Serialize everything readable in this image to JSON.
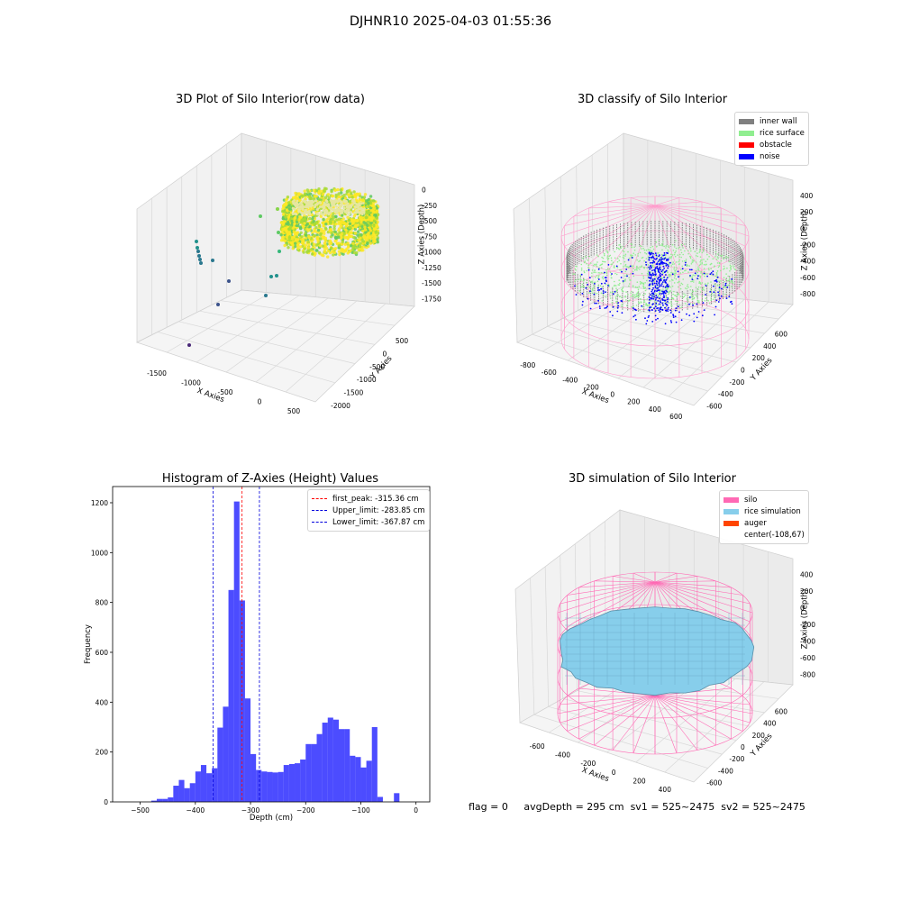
{
  "figure": {
    "suptitle": "DJHNR10 2025-04-03 01:55:36",
    "status": {
      "flag": "flag = 0",
      "avg_depth": "avgDepth = 295 cm",
      "sv1": "sv1 = 525~2475",
      "sv2": "sv2 = 525~2475"
    }
  },
  "chart_data": [
    {
      "type": "scatter",
      "title": "3D Plot of Silo Interior(row data)",
      "xlabel": "X Axies",
      "ylabel": "Y Axies",
      "zlabel": "Z Axies (Depth)",
      "x_ticks": [
        "-1500",
        "-1000",
        "-500",
        "0",
        "500"
      ],
      "y_ticks": [
        "500",
        "0",
        "-500",
        "-1000",
        "-1500",
        "-2000"
      ],
      "z_ticks": [
        "0",
        "-250",
        "-500",
        "-750",
        "-1000",
        "-1250",
        "-1500",
        "-1750"
      ],
      "colormap": [
        "#440154",
        "#3b528b",
        "#21918c",
        "#5ec962",
        "#fde725"
      ],
      "description_points": "dense ring of points near depth -250 to -750, sparse outliers down to about -1750"
    },
    {
      "type": "scatter",
      "title": "3D classify of Silo Interior",
      "xlabel": "X Axies",
      "ylabel": "Y Axies",
      "zlabel": "Z Axies (Depth)",
      "x_ticks": [
        "-800",
        "-600",
        "-400",
        "-200",
        "0",
        "200",
        "400",
        "600"
      ],
      "y_ticks": [
        "600",
        "400",
        "200",
        "0",
        "-200",
        "-400",
        "-600"
      ],
      "z_ticks": [
        "400",
        "200",
        "0",
        "-200",
        "-400",
        "-600",
        "-800"
      ],
      "legend": [
        {
          "label": "inner wall",
          "color": "#808080"
        },
        {
          "label": "rice surface",
          "color": "#90ee90"
        },
        {
          "label": "obstacle",
          "color": "#ff0000"
        },
        {
          "label": "noise",
          "color": "#0000ff"
        }
      ],
      "legend_position": "top-right"
    },
    {
      "type": "bar",
      "title": "Histogram of Z-Axies (Height) Values",
      "xlabel": "Depth (cm)",
      "ylabel": "Frequency",
      "xlim": [
        -550,
        25
      ],
      "ylim": [
        0,
        1265
      ],
      "x_ticks": [
        -500,
        -400,
        -300,
        -200,
        -100,
        0
      ],
      "y_ticks": [
        0,
        200,
        400,
        600,
        800,
        1000,
        1200
      ],
      "bin_width": 10,
      "bins": [
        {
          "x": -475,
          "v": 5
        },
        {
          "x": -465,
          "v": 12
        },
        {
          "x": -455,
          "v": 12
        },
        {
          "x": -445,
          "v": 18
        },
        {
          "x": -435,
          "v": 65
        },
        {
          "x": -425,
          "v": 88
        },
        {
          "x": -415,
          "v": 55
        },
        {
          "x": -405,
          "v": 75
        },
        {
          "x": -395,
          "v": 122
        },
        {
          "x": -385,
          "v": 148
        },
        {
          "x": -375,
          "v": 115
        },
        {
          "x": -365,
          "v": 135
        },
        {
          "x": -355,
          "v": 298
        },
        {
          "x": -345,
          "v": 382
        },
        {
          "x": -335,
          "v": 850
        },
        {
          "x": -325,
          "v": 1205
        },
        {
          "x": -315,
          "v": 808
        },
        {
          "x": -305,
          "v": 415
        },
        {
          "x": -295,
          "v": 192
        },
        {
          "x": -285,
          "v": 128
        },
        {
          "x": -275,
          "v": 122
        },
        {
          "x": -265,
          "v": 120
        },
        {
          "x": -255,
          "v": 118
        },
        {
          "x": -245,
          "v": 120
        },
        {
          "x": -235,
          "v": 148
        },
        {
          "x": -225,
          "v": 152
        },
        {
          "x": -215,
          "v": 155
        },
        {
          "x": -205,
          "v": 170
        },
        {
          "x": -195,
          "v": 232
        },
        {
          "x": -185,
          "v": 232
        },
        {
          "x": -175,
          "v": 272
        },
        {
          "x": -165,
          "v": 318
        },
        {
          "x": -155,
          "v": 338
        },
        {
          "x": -145,
          "v": 330
        },
        {
          "x": -135,
          "v": 292
        },
        {
          "x": -125,
          "v": 292
        },
        {
          "x": -115,
          "v": 185
        },
        {
          "x": -105,
          "v": 180
        },
        {
          "x": -95,
          "v": 138
        },
        {
          "x": -85,
          "v": 165
        },
        {
          "x": -75,
          "v": 300
        },
        {
          "x": -65,
          "v": 20
        },
        {
          "x": -55,
          "v": 0
        },
        {
          "x": -45,
          "v": 0
        },
        {
          "x": -35,
          "v": 35
        }
      ],
      "bar_color": "#0000ff",
      "vlines": [
        {
          "x": -315.36,
          "color": "#ff0000",
          "label": "first_peak: -315.36 cm"
        },
        {
          "x": -283.85,
          "color": "#0000dd",
          "label": "Upper_limit: -283.85 cm"
        },
        {
          "x": -367.87,
          "color": "#0000dd",
          "label": "Lower_limit: -367.87 cm"
        }
      ],
      "legend_position": "top-right"
    },
    {
      "type": "area",
      "title": "3D simulation of Silo Interior",
      "xlabel": "X Axies",
      "ylabel": "Y Axies",
      "zlabel": "Z Axies (Depth)",
      "x_ticks": [
        "-600",
        "-400",
        "-200",
        "0",
        "200",
        "400"
      ],
      "y_ticks": [
        "600",
        "400",
        "200",
        "0",
        "-200",
        "-400",
        "-600"
      ],
      "z_ticks": [
        "400",
        "200",
        "0",
        "-200",
        "-400",
        "-600",
        "-800"
      ],
      "legend": [
        {
          "label": "silo",
          "color": "#ff69b4"
        },
        {
          "label": "rice simulation",
          "color": "#87ceeb"
        },
        {
          "label": "auger",
          "color": "#ff4500"
        },
        {
          "label": "center(-108,67)",
          "color": ""
        }
      ],
      "legend_position": "top-right"
    }
  ]
}
